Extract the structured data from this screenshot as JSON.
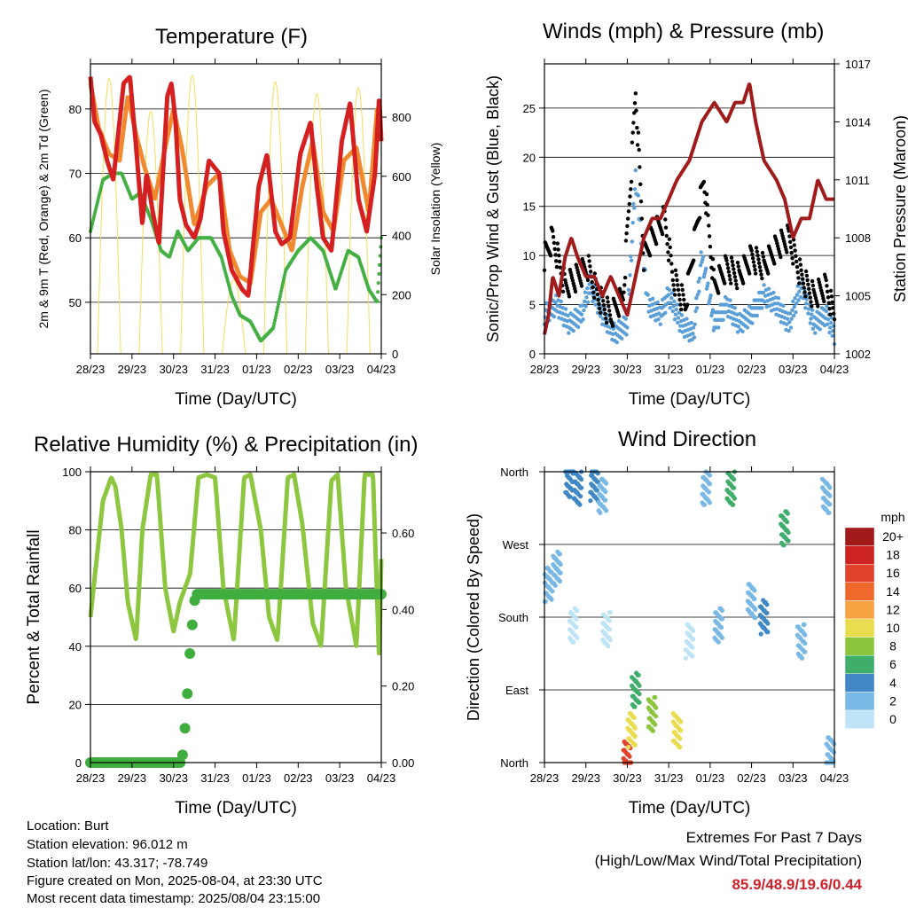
{
  "colors": {
    "temp_9m": "#d42020",
    "temp_2m": "#f08a30",
    "dewpoint": "#44b044",
    "solar": "#f2dd5c",
    "wind": "#5b9fd8",
    "gust": "#000000",
    "pressure": "#a01c1c",
    "rh": "#8dc63f",
    "precip": "#3fae3f",
    "extremes_value": "#d0202a"
  },
  "x_ticks": [
    "28/23",
    "29/23",
    "30/23",
    "31/23",
    "01/23",
    "02/23",
    "03/23",
    "04/23"
  ],
  "x_label": "Time (Day/UTC)",
  "panels": {
    "temperature": {
      "title": "Temperature (F)",
      "ylabel_left": "2m & 9m T (Red, Orange) & 2m Td (Green)",
      "ylabel_right": "Solar Insolation (Yellow)",
      "left_ticks": [
        "50",
        "60",
        "70",
        "80"
      ],
      "right_ticks": [
        "0",
        "200",
        "400",
        "600",
        "800"
      ]
    },
    "winds": {
      "title": "Winds (mph) & Pressure (mb)",
      "ylabel_left": "Sonic/Prop Wind & Gust (Blue, Black)",
      "ylabel_right": "Station Pressure (Maroon)",
      "left_ticks": [
        "0",
        "5",
        "10",
        "15",
        "20",
        "25"
      ],
      "right_ticks": [
        "1002",
        "1005",
        "1008",
        "1011",
        "1014",
        "1017"
      ]
    },
    "humidity": {
      "title": "Relative Humidity (%) & Precipitation (in)",
      "ylabel_left": "Percent & Total Rainfall",
      "left_ticks": [
        "0",
        "20",
        "40",
        "60",
        "80",
        "100"
      ],
      "right_ticks": [
        "0.00",
        "0.20",
        "0.40",
        "0.60"
      ]
    },
    "direction": {
      "title": "Wind Direction",
      "ylabel_left": "Direction (Colored By Speed)",
      "dir_ticks": [
        "North",
        "East",
        "South",
        "West",
        "North"
      ]
    }
  },
  "legend": {
    "unit": "mph",
    "labels": [
      "20+",
      "18",
      "16",
      "14",
      "12",
      "10",
      "8",
      "6",
      "4",
      "2",
      "0"
    ],
    "colors": [
      "#a31a1a",
      "#cc2222",
      "#e0422c",
      "#f0692c",
      "#f6a343",
      "#e9dc4f",
      "#8cc63f",
      "#3fae6a",
      "#3f88c5",
      "#7ab8e6",
      "#bfe3f7"
    ]
  },
  "info": {
    "location": "Location: Burt",
    "elevation": "Station elevation: 96.012 m",
    "latlon": "Station lat/lon: 43.317; -78.749",
    "created": "Figure created on Mon, 2025-08-04, at 23:30 UTC",
    "recent": "Most recent data timestamp: 2025/08/04 23:15:00"
  },
  "extremes": {
    "line1": "Extremes For Past 7 Days",
    "line2": "(High/Low/Max Wind/Total Precipitation)",
    "values": "85.9/48.9/19.6/0.44"
  },
  "chart_data": [
    {
      "type": "line",
      "title": "Temperature (F)",
      "xlabel": "Time (Day/UTC)",
      "ylabel": "2m & 9m T (Red, Orange) & 2m Td (Green)",
      "y2label": "Solar Insolation (Yellow)",
      "x_unit": "days since 28/23",
      "xlim": [
        0,
        7
      ],
      "ylim": [
        42,
        87
      ],
      "y2lim": [
        0,
        980
      ],
      "series": [
        {
          "name": "9m T",
          "axis": "left",
          "x": [
            0,
            0.1,
            0.25,
            0.4,
            0.55,
            0.65,
            0.8,
            0.95,
            1.1,
            1.25,
            1.35,
            1.5,
            1.65,
            1.85,
            1.95,
            2.05,
            2.15,
            2.3,
            2.5,
            2.65,
            2.85,
            3.1,
            3.2,
            3.4,
            3.65,
            3.8,
            4.05,
            4.25,
            4.45,
            4.6,
            4.8,
            5.05,
            5.3,
            5.45,
            5.6,
            5.8,
            6.05,
            6.25,
            6.45,
            6.65,
            6.85,
            6.95,
            7.0
          ],
          "y": [
            85,
            78,
            76,
            72,
            69,
            75,
            84,
            85,
            74,
            62,
            70,
            64,
            59,
            82,
            84,
            78,
            66,
            62,
            60,
            63,
            72,
            70,
            61,
            55,
            52,
            51,
            68,
            73,
            61,
            59,
            60,
            73,
            78,
            68,
            60,
            58,
            75,
            81,
            66,
            61,
            70,
            82,
            75
          ]
        },
        {
          "name": "2m T",
          "axis": "left",
          "x": [
            0,
            0.2,
            0.45,
            0.7,
            0.9,
            1.1,
            1.3,
            1.55,
            1.8,
            2.0,
            2.2,
            2.5,
            2.8,
            3.1,
            3.35,
            3.6,
            3.85,
            4.1,
            4.35,
            4.6,
            4.85,
            5.1,
            5.35,
            5.6,
            5.85,
            6.1,
            6.4,
            6.7,
            6.9,
            7.0
          ],
          "y": [
            84,
            77,
            73,
            72,
            82,
            76,
            71,
            66,
            74,
            80,
            74,
            62,
            68,
            70,
            58,
            54,
            53,
            64,
            66,
            62,
            58,
            68,
            75,
            64,
            61,
            72,
            74,
            64,
            80,
            76
          ]
        },
        {
          "name": "2m Td",
          "axis": "left",
          "x": [
            0,
            0.3,
            0.55,
            0.75,
            1.0,
            1.2,
            1.45,
            1.7,
            1.9,
            2.1,
            2.35,
            2.6,
            2.9,
            3.15,
            3.4,
            3.6,
            3.85,
            4.1,
            4.4,
            4.7,
            5.0,
            5.3,
            5.6,
            5.9,
            6.2,
            6.45,
            6.7,
            6.9,
            7.0
          ],
          "y": [
            61,
            69,
            70,
            70,
            66,
            67,
            63,
            58,
            57,
            61,
            58,
            60,
            60,
            57,
            51,
            48,
            47,
            44,
            46,
            55,
            58,
            60,
            58,
            52,
            58,
            57,
            52,
            50,
            60
          ]
        },
        {
          "name": "Solar Insolation",
          "axis": "right",
          "peaks_x": [
            0.45,
            1.45,
            2.45,
            3.45,
            4.45,
            5.45,
            6.45
          ],
          "peaks_y": [
            930,
            820,
            940,
            250,
            920,
            880,
            900
          ]
        }
      ]
    },
    {
      "type": "line",
      "title": "Winds (mph) & Pressure (mb)",
      "xlabel": "Time (Day/UTC)",
      "ylabel": "Sonic/Prop Wind & Gust (Blue, Black)",
      "y2label": "Station Pressure (Maroon)",
      "x_unit": "days since 28/23",
      "xlim": [
        0,
        7
      ],
      "ylim": [
        0,
        29.5
      ],
      "y2lim": [
        1002,
        1017
      ],
      "series": [
        {
          "name": "Wind",
          "axis": "left",
          "x": [
            0,
            0.3,
            0.6,
            0.9,
            1.1,
            1.4,
            1.7,
            2.0,
            2.2,
            2.5,
            2.8,
            3.0,
            3.3,
            3.6,
            3.8,
            4.1,
            4.4,
            4.7,
            5.0,
            5.3,
            5.6,
            5.9,
            6.2,
            6.5,
            6.8,
            7.0
          ],
          "y": [
            4,
            5,
            3,
            4,
            7,
            4,
            2,
            3,
            18,
            5,
            4,
            6,
            3,
            2,
            10,
            3,
            5,
            3,
            4,
            6,
            5,
            3,
            7,
            3,
            4,
            2
          ]
        },
        {
          "name": "Gust",
          "axis": "left",
          "x": [
            0,
            0.2,
            0.5,
            0.8,
            1.05,
            1.3,
            1.6,
            1.9,
            2.1,
            2.2,
            2.4,
            2.6,
            2.9,
            3.1,
            3.4,
            3.7,
            3.85,
            4.1,
            4.4,
            4.7,
            5.0,
            5.3,
            5.6,
            5.9,
            6.2,
            6.5,
            6.8,
            7.0
          ],
          "y": [
            10,
            12,
            7,
            8,
            9,
            6,
            4,
            6,
            19,
            27,
            10,
            12,
            14,
            8,
            5,
            14,
            18,
            7,
            9,
            8,
            10,
            9,
            11,
            12,
            8,
            6,
            7,
            4
          ]
        },
        {
          "name": "Station Pressure",
          "axis": "right",
          "x": [
            0,
            0.1,
            0.2,
            0.35,
            0.5,
            0.65,
            0.8,
            1.0,
            1.2,
            1.4,
            1.6,
            1.8,
            2.0,
            2.2,
            2.4,
            2.6,
            2.8,
            3.0,
            3.2,
            3.5,
            3.8,
            4.1,
            4.4,
            4.6,
            4.8,
            4.95,
            5.1,
            5.3,
            5.6,
            5.8,
            6.0,
            6.2,
            6.4,
            6.6,
            6.8,
            7.0
          ],
          "y": [
            1003,
            1004,
            1006,
            1005,
            1007,
            1008,
            1007,
            1006,
            1006,
            1005,
            1006,
            1005,
            1004,
            1006,
            1008,
            1009,
            1009,
            1010,
            1011,
            1012,
            1014,
            1015,
            1014,
            1015,
            1015,
            1016,
            1014,
            1012,
            1011,
            1010,
            1008,
            1009,
            1009,
            1011,
            1010,
            1010
          ]
        }
      ]
    },
    {
      "type": "line",
      "title": "Relative Humidity (%) & Precipitation (in)",
      "xlabel": "Time (Day/UTC)",
      "ylabel": "Percent & Total Rainfall",
      "x_unit": "days since 28/23",
      "xlim": [
        0,
        7
      ],
      "ylim": [
        0,
        100
      ],
      "y2lim": [
        0,
        0.76
      ],
      "series": [
        {
          "name": "Relative Humidity",
          "axis": "left",
          "x": [
            0,
            0.15,
            0.3,
            0.5,
            0.6,
            0.75,
            0.9,
            1.1,
            1.25,
            1.45,
            1.6,
            1.8,
            2.0,
            2.15,
            2.4,
            2.6,
            2.8,
            3.0,
            3.2,
            3.45,
            3.7,
            3.85,
            4.1,
            4.3,
            4.5,
            4.75,
            4.9,
            5.1,
            5.35,
            5.55,
            5.8,
            5.95,
            6.15,
            6.4,
            6.6,
            6.8,
            6.95,
            7.0
          ],
          "y": [
            50,
            70,
            90,
            98,
            95,
            80,
            55,
            42,
            80,
            99,
            99,
            60,
            45,
            55,
            65,
            98,
            99,
            98,
            60,
            42,
            98,
            99,
            80,
            50,
            42,
            98,
            99,
            82,
            48,
            40,
            97,
            99,
            60,
            40,
            99,
            99,
            35,
            70
          ]
        },
        {
          "name": "Precipitation",
          "axis": "right",
          "x": [
            0,
            1.0,
            2.2,
            2.3,
            2.4,
            2.5,
            2.55,
            7.0
          ],
          "y": [
            0,
            0,
            0,
            0.12,
            0.3,
            0.42,
            0.44,
            0.44
          ]
        }
      ]
    },
    {
      "type": "scatter",
      "title": "Wind Direction",
      "xlabel": "Time (Day/UTC)",
      "ylabel": "Direction (Colored By Speed)",
      "x_unit": "days since 28/23",
      "xlim": [
        0,
        7
      ],
      "y_unit": "degrees (0=North, 90=East, 180=South, 270=West, 360=North)",
      "ylim": [
        0,
        360
      ],
      "clusters": [
        {
          "x": 0.1,
          "y": 220,
          "speed": 4
        },
        {
          "x": 0.3,
          "y": 240,
          "speed": 3
        },
        {
          "x": 0.6,
          "y": 350,
          "speed": 6
        },
        {
          "x": 0.8,
          "y": 340,
          "speed": 5
        },
        {
          "x": 1.2,
          "y": 345,
          "speed": 5
        },
        {
          "x": 1.4,
          "y": 330,
          "speed": 4
        },
        {
          "x": 0.7,
          "y": 170,
          "speed": 2
        },
        {
          "x": 1.5,
          "y": 165,
          "speed": 2
        },
        {
          "x": 2.0,
          "y": 5,
          "speed": 18
        },
        {
          "x": 2.1,
          "y": 40,
          "speed": 12
        },
        {
          "x": 2.2,
          "y": 90,
          "speed": 8
        },
        {
          "x": 2.6,
          "y": 60,
          "speed": 10
        },
        {
          "x": 3.2,
          "y": 40,
          "speed": 11
        },
        {
          "x": 3.5,
          "y": 150,
          "speed": 2
        },
        {
          "x": 3.9,
          "y": 340,
          "speed": 4
        },
        {
          "x": 4.2,
          "y": 170,
          "speed": 4
        },
        {
          "x": 4.5,
          "y": 340,
          "speed": 7
        },
        {
          "x": 5.0,
          "y": 200,
          "speed": 4
        },
        {
          "x": 5.3,
          "y": 180,
          "speed": 5
        },
        {
          "x": 5.8,
          "y": 290,
          "speed": 7
        },
        {
          "x": 6.2,
          "y": 150,
          "speed": 3
        },
        {
          "x": 6.8,
          "y": 330,
          "speed": 4
        },
        {
          "x": 6.9,
          "y": 10,
          "speed": 3
        }
      ]
    }
  ]
}
